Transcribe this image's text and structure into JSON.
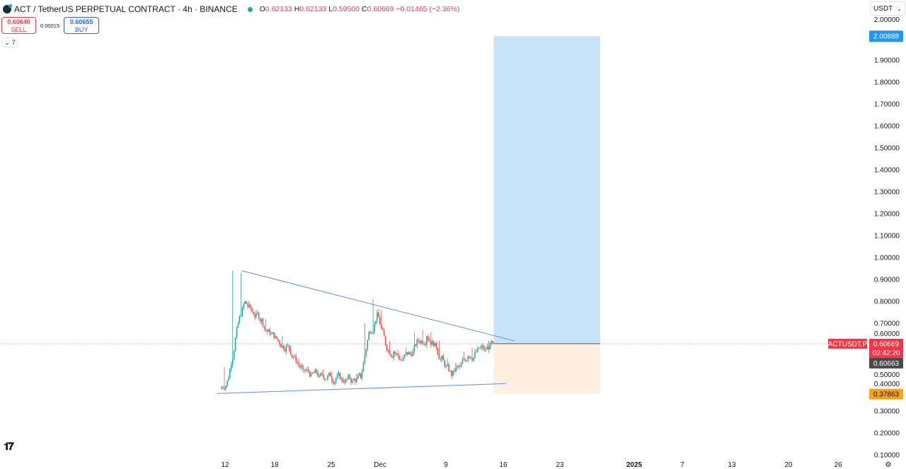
{
  "header": {
    "symbol_title": "ACT / TetherUS PERPETUAL CONTRACT · 4h · BINANCE",
    "ohlc": {
      "o_label": "O",
      "o": "0.62133",
      "h_label": "H",
      "h": "0.62133",
      "l_label": "L",
      "l": "0.59500",
      "c_label": "C",
      "c": "0.60669",
      "change": "−0.01465 (−2.36%)"
    }
  },
  "trade": {
    "sell_price": "0.60640",
    "sell_label": "SELL",
    "spread": "0.00015",
    "buy_price": "0.60655",
    "buy_label": "BUY"
  },
  "indicators_toggle": {
    "count": "7"
  },
  "currency_select": {
    "value": "USDT"
  },
  "logo_text": "TV",
  "colors": {
    "up": "#26a69a",
    "down": "#ef5350",
    "target_zone": "#c9e3fa",
    "stop_zone": "#fdf0de",
    "trendline": "#5b8def",
    "current_price": "#f23645",
    "target_label": "#2196f3",
    "stop_label": "#f7a21b"
  },
  "chart_data": {
    "type": "candlestick",
    "interval": "4h",
    "ylim": [
      0.1,
      2.1
    ],
    "y_ticks": [
      "0.10000",
      "0.20000",
      "0.30000",
      "0.40000",
      "0.50000",
      "0.60000",
      "0.70000",
      "0.80000",
      "0.90000",
      "1.00000",
      "1.10000",
      "1.20000",
      "1.30000",
      "1.40000",
      "1.50000",
      "1.60000",
      "1.70000",
      "1.80000",
      "1.90000",
      "2.00000"
    ],
    "x_ticks": [
      "12",
      "18",
      "25",
      "Dec",
      "9",
      "16",
      "23",
      "2025",
      "7",
      "13",
      "20",
      "26"
    ],
    "start_open": 0.4,
    "daily": {
      "dates": [
        "Nov 12",
        "Nov 13",
        "Nov 14",
        "Nov 15",
        "Nov 16",
        "Nov 17",
        "Nov 18",
        "Nov 19",
        "Nov 20",
        "Nov 21",
        "Nov 22",
        "Nov 23",
        "Nov 24",
        "Nov 25",
        "Nov 26",
        "Nov 27",
        "Nov 28",
        "Nov 29",
        "Nov 30",
        "Dec 1",
        "Dec 2",
        "Dec 3",
        "Dec 4",
        "Dec 5",
        "Dec 6",
        "Dec 7",
        "Dec 8",
        "Dec 9",
        "Dec 10",
        "Dec 11",
        "Dec 12",
        "Dec 13",
        "Dec 14"
      ],
      "close": [
        0.45,
        0.68,
        0.8,
        0.74,
        0.72,
        0.65,
        0.62,
        0.6,
        0.55,
        0.49,
        0.47,
        0.46,
        0.46,
        0.45,
        0.43,
        0.44,
        0.45,
        0.66,
        0.75,
        0.6,
        0.57,
        0.53,
        0.56,
        0.62,
        0.64,
        0.61,
        0.53,
        0.46,
        0.5,
        0.55,
        0.57,
        0.58,
        0.60669
      ],
      "high": [
        0.5,
        0.94,
        0.93,
        0.8,
        0.76,
        0.72,
        0.66,
        0.64,
        0.6,
        0.54,
        0.5,
        0.49,
        0.49,
        0.48,
        0.47,
        0.46,
        0.47,
        0.7,
        0.81,
        0.76,
        0.62,
        0.58,
        0.59,
        0.66,
        0.67,
        0.66,
        0.62,
        0.54,
        0.52,
        0.57,
        0.59,
        0.6,
        0.62
      ]
    },
    "trendlines": [
      {
        "from": {
          "date": "Nov 14",
          "price": 0.94
        },
        "to": {
          "date": "Dec 17",
          "price": 0.62
        }
      },
      {
        "from": {
          "date": "Nov 11",
          "price": 0.38
        },
        "to": {
          "date": "Dec 16",
          "price": 0.425
        }
      }
    ],
    "long_position": {
      "entry": 0.60669,
      "target": 2.00888,
      "stop": 0.37863,
      "from": "Dec 14",
      "to": "Dec 27"
    },
    "labels": {
      "symbol": "ACTUSDT.P",
      "last_price": "0.60669",
      "countdown": "02:42:20",
      "crosshair_price": "0.60663",
      "target": "2.00888",
      "stop": "0.37863"
    }
  }
}
